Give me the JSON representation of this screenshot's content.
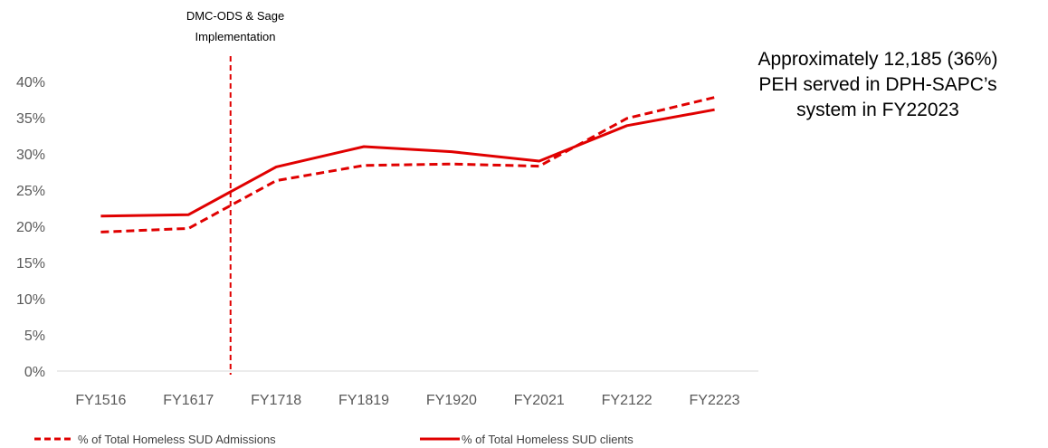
{
  "chart_data": {
    "type": "line",
    "categories": [
      "FY1516",
      "FY1617",
      "FY1718",
      "FY1819",
      "FY1920",
      "FY2021",
      "FY2122",
      "FY2223"
    ],
    "ylim": [
      0,
      40
    ],
    "yticks": [
      0,
      5,
      10,
      15,
      20,
      25,
      30,
      35,
      40
    ],
    "ytick_labels": [
      "0%",
      "5%",
      "10%",
      "15%",
      "20%",
      "25%",
      "30%",
      "35%",
      "40%"
    ],
    "series": [
      {
        "name": "% of Total Homeless SUD Admissions",
        "style": "dashed",
        "values": [
          19.2,
          19.7,
          26.3,
          28.4,
          28.6,
          28.3,
          34.9,
          37.8
        ]
      },
      {
        "name": "% of Total Homeless SUD clients",
        "style": "solid",
        "values": [
          21.4,
          21.6,
          28.2,
          31.0,
          30.3,
          29.0,
          33.9,
          36.1
        ]
      }
    ],
    "color": "#e00000",
    "grid": false,
    "legend_position": "bottom",
    "annotations": {
      "vline_label_line1": "DMC-ODS & Sage",
      "vline_label_line2": "Implementation",
      "vline_position": 1.5,
      "callout_line1": "Approximately 12,185 (36%)",
      "callout_line2": "PEH served in DPH-SAPC’s",
      "callout_line3": "system in FY22023"
    }
  }
}
